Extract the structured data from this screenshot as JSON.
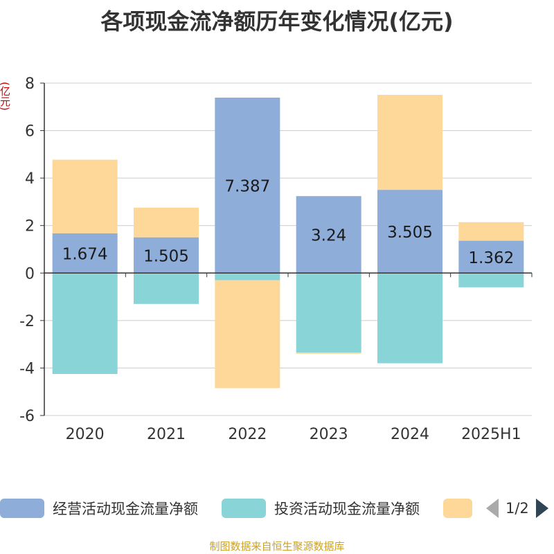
{
  "chart_data": {
    "type": "bar",
    "stacked": true,
    "title": "各项现金流净额历年变化情况(亿元)",
    "ylabel": "(亿元)",
    "categories": [
      "2020",
      "2021",
      "2022",
      "2023",
      "2024",
      "2025H1"
    ],
    "ylim": [
      -6,
      8
    ],
    "yticks": [
      8,
      6,
      4,
      2,
      0,
      -2,
      -4,
      -6
    ],
    "grid": true,
    "legend_position": "bottom",
    "series": [
      {
        "name": "经营活动现金流量净额",
        "color": "#8fadd9",
        "values": [
          1.674,
          1.505,
          7.387,
          3.24,
          3.505,
          1.362
        ],
        "labels": [
          "1.674",
          "1.505",
          "7.387",
          "3.24",
          "3.505",
          "1.362"
        ]
      },
      {
        "name": "投资活动现金流量净额",
        "color": "#88d4d6",
        "values": [
          -4.25,
          -1.3,
          -0.3,
          -3.35,
          -3.8,
          -0.6
        ]
      },
      {
        "name": "",
        "color": "#fed899",
        "values": [
          3.1,
          1.25,
          -4.55,
          -0.05,
          4.0,
          0.78
        ]
      }
    ]
  },
  "legend": {
    "page": "1/2"
  },
  "footer": "制图数据来自恒生聚源数据库"
}
